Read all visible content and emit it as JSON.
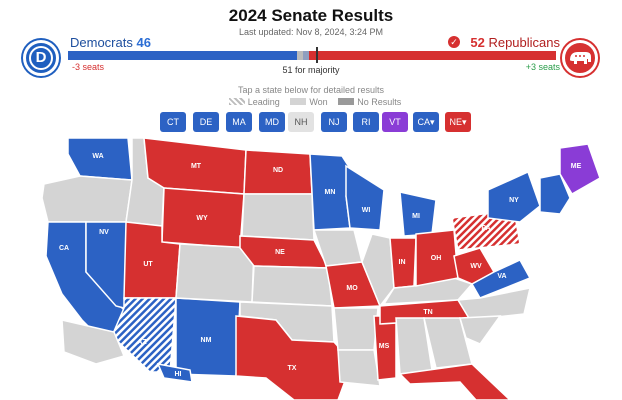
{
  "header": {
    "title": "2024 Senate Results",
    "updated": "Last updated: Nov 8, 2024, 3:24 PM"
  },
  "democrats": {
    "label": "Democrats",
    "seats": "46",
    "change": "-3 seats"
  },
  "republicans": {
    "label": "Republicans",
    "seats": "52",
    "change": "+3 seats"
  },
  "majority_label": "51 for majority",
  "hint": "Tap a state below for detailed results",
  "legend": {
    "leading": "Leading",
    "won": "Won",
    "no_results": "No Results"
  },
  "chips": [
    {
      "label": "CT",
      "party": "dem"
    },
    {
      "label": "DE",
      "party": "dem"
    },
    {
      "label": "MA",
      "party": "dem"
    },
    {
      "label": "MD",
      "party": "dem"
    },
    {
      "label": "NH",
      "party": "none"
    },
    {
      "label": "NJ",
      "party": "dem"
    },
    {
      "label": "RI",
      "party": "dem"
    },
    {
      "label": "VT",
      "party": "ind"
    },
    {
      "label": "CA",
      "party": "dem",
      "starred": true
    },
    {
      "label": "NE",
      "party": "rep",
      "starred": true
    }
  ],
  "colors": {
    "dem": "#2c62c4",
    "rep": "#d63030",
    "ind": "#8a3cd6",
    "no_race": "#d4d4d4",
    "border": "#ffffff"
  },
  "map_states": [
    {
      "id": "WA",
      "party": "dem"
    },
    {
      "id": "OR",
      "party": "none"
    },
    {
      "id": "CA",
      "party": "dem"
    },
    {
      "id": "NV",
      "party": "dem"
    },
    {
      "id": "ID",
      "party": "none"
    },
    {
      "id": "MT",
      "party": "rep"
    },
    {
      "id": "WY",
      "party": "rep"
    },
    {
      "id": "UT",
      "party": "rep"
    },
    {
      "id": "AZ",
      "party": "dem",
      "leading": true
    },
    {
      "id": "NM",
      "party": "dem"
    },
    {
      "id": "CO",
      "party": "none"
    },
    {
      "id": "ND",
      "party": "rep"
    },
    {
      "id": "SD",
      "party": "none"
    },
    {
      "id": "NE",
      "party": "rep"
    },
    {
      "id": "KS",
      "party": "none"
    },
    {
      "id": "OK",
      "party": "none"
    },
    {
      "id": "TX",
      "party": "rep"
    },
    {
      "id": "MN",
      "party": "dem"
    },
    {
      "id": "IA",
      "party": "none"
    },
    {
      "id": "MO",
      "party": "rep"
    },
    {
      "id": "AR",
      "party": "none"
    },
    {
      "id": "LA",
      "party": "none"
    },
    {
      "id": "WI",
      "party": "dem"
    },
    {
      "id": "IL",
      "party": "none"
    },
    {
      "id": "MS",
      "party": "rep"
    },
    {
      "id": "MI",
      "party": "dem"
    },
    {
      "id": "IN",
      "party": "rep"
    },
    {
      "id": "KY",
      "party": "none"
    },
    {
      "id": "TN",
      "party": "rep"
    },
    {
      "id": "AL",
      "party": "none"
    },
    {
      "id": "OH",
      "party": "rep"
    },
    {
      "id": "GA",
      "party": "none"
    },
    {
      "id": "FL",
      "party": "rep"
    },
    {
      "id": "WV",
      "party": "rep"
    },
    {
      "id": "VA",
      "party": "dem"
    },
    {
      "id": "NC",
      "party": "none"
    },
    {
      "id": "SC",
      "party": "none"
    },
    {
      "id": "PA",
      "party": "rep",
      "leading": true
    },
    {
      "id": "NY",
      "party": "dem"
    },
    {
      "id": "ME",
      "party": "ind"
    },
    {
      "id": "AK",
      "party": "none"
    },
    {
      "id": "HI",
      "party": "dem"
    }
  ]
}
